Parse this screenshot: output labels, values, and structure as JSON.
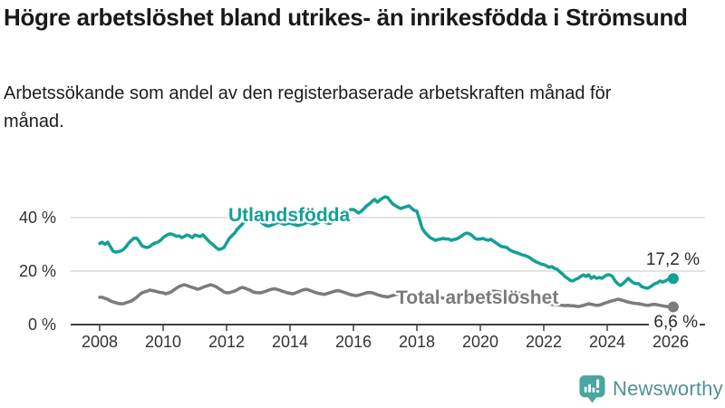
{
  "header": {
    "title": "Högre arbetslöshet bland utrikes- än inrikesfödda i Strömsund",
    "subtitle": "Arbetssökande som andel av den registerbaserade arbetskraften månad för månad."
  },
  "footer": {
    "brand_name": "Newsworthy"
  },
  "colors": {
    "foreign_line": "#13a096",
    "total_line": "#7b7b7b",
    "grid": "#dadada",
    "axis": "#404040",
    "brand_icon": "#4ba5a0",
    "brand_text": "#4f9390"
  },
  "chart_data": {
    "type": "line",
    "title": "Högre arbetslöshet bland utrikes- än inrikesfödda i Strömsund",
    "subtitle": "Arbetssökande som andel av den registerbaserade arbetskraften månad för månad.",
    "x_unit": "month",
    "x_start": "2008-01",
    "x_end": "2026-02",
    "x_ticks": [
      2008,
      2010,
      2012,
      2014,
      2016,
      2018,
      2020,
      2022,
      2024,
      2026
    ],
    "y_ticks": [
      {
        "label": "0 %",
        "value": 0
      },
      {
        "label": "20 %",
        "value": 20
      },
      {
        "label": "40 %",
        "value": 40
      }
    ],
    "ylim": [
      0,
      55
    ],
    "grid": "horizontal",
    "legend_position": "inline-labels",
    "series": [
      {
        "name": "Utlandsfödda",
        "color": "#13a096",
        "end_label": "17,2 %",
        "end_value": 17.2,
        "values": [
          30.3,
          30.8,
          30.0,
          30.8,
          29.2,
          27.5,
          27.1,
          27.3,
          27.5,
          28.1,
          29.2,
          30.5,
          31.5,
          32.3,
          32.3,
          31.0,
          29.5,
          29.0,
          28.8,
          29.2,
          30.0,
          30.5,
          30.8,
          31.5,
          32.5,
          33.2,
          33.8,
          33.9,
          33.6,
          33.0,
          33.2,
          32.5,
          32.9,
          33.5,
          33.2,
          32.5,
          33.5,
          33.2,
          32.9,
          33.6,
          32.5,
          31.5,
          30.5,
          29.8,
          28.8,
          28.1,
          28.3,
          28.8,
          30.5,
          32.2,
          33.2,
          34.2,
          35.6,
          36.6,
          37.6,
          39.0,
          39.3,
          38.3,
          39.0,
          39.3,
          39.0,
          38.3,
          37.6,
          37.0,
          36.8,
          37.2,
          37.6,
          38.0,
          38.3,
          37.8,
          37.5,
          37.8,
          38.0,
          37.6,
          37.3,
          37.0,
          37.3,
          37.6,
          38.0,
          38.3,
          37.9,
          37.6,
          37.9,
          38.2,
          38.5,
          38.3,
          38.0,
          37.8,
          38.3,
          39.0,
          39.5,
          40.2,
          41.0,
          41.8,
          42.4,
          43.0,
          43.0,
          42.4,
          41.7,
          42.4,
          43.4,
          44.4,
          45.1,
          46.0,
          46.8,
          45.8,
          46.5,
          47.3,
          47.8,
          47.5,
          46.1,
          45.0,
          44.4,
          43.8,
          43.4,
          43.8,
          44.1,
          44.4,
          43.5,
          42.7,
          42.4,
          39.3,
          36.0,
          34.5,
          33.5,
          32.5,
          32.0,
          31.5,
          31.8,
          32.0,
          32.2,
          32.0,
          32.0,
          31.5,
          31.8,
          32.0,
          32.5,
          33.2,
          33.9,
          34.2,
          33.9,
          33.2,
          32.2,
          31.9,
          32.0,
          32.2,
          31.8,
          31.5,
          31.9,
          31.2,
          30.5,
          29.8,
          29.2,
          29.0,
          28.8,
          28.0,
          27.5,
          27.1,
          26.8,
          26.4,
          26.0,
          25.8,
          25.4,
          24.8,
          24.1,
          23.5,
          23.1,
          22.6,
          22.4,
          22.0,
          21.4,
          21.7,
          21.0,
          20.7,
          19.8,
          19.0,
          18.0,
          17.3,
          16.5,
          16.3,
          16.9,
          17.3,
          18.0,
          18.6,
          18.0,
          18.6,
          17.3,
          18.0,
          17.3,
          17.6,
          17.3,
          18.0,
          18.6,
          18.6,
          18.0,
          16.3,
          15.3,
          14.6,
          15.3,
          16.3,
          17.3,
          16.3,
          15.6,
          15.3,
          15.3,
          14.2,
          13.9,
          13.6,
          13.9,
          14.6,
          15.3,
          15.6,
          16.3,
          15.9,
          16.3,
          16.9,
          16.9,
          17.2
        ]
      },
      {
        "name": "Total arbetslöshet",
        "color": "#7b7b7b",
        "end_label": "6,6 %",
        "end_value": 6.6,
        "values": [
          10.2,
          10.2,
          9.8,
          9.5,
          8.8,
          8.5,
          8.2,
          7.9,
          7.8,
          7.8,
          8.2,
          8.5,
          8.8,
          9.5,
          10.2,
          11.2,
          11.9,
          12.2,
          12.5,
          12.9,
          12.7,
          12.5,
          12.2,
          12.0,
          11.9,
          11.5,
          11.8,
          12.2,
          12.9,
          13.6,
          14.2,
          14.6,
          14.9,
          14.6,
          14.2,
          13.9,
          13.6,
          13.2,
          13.5,
          13.9,
          14.3,
          14.6,
          14.9,
          14.6,
          14.2,
          13.5,
          12.9,
          12.2,
          11.9,
          11.9,
          12.2,
          12.5,
          13.0,
          13.6,
          13.9,
          13.6,
          13.2,
          12.8,
          12.2,
          12.0,
          11.9,
          11.9,
          12.2,
          12.5,
          12.9,
          13.2,
          13.4,
          13.2,
          12.9,
          12.5,
          12.2,
          11.9,
          11.7,
          11.5,
          11.8,
          12.2,
          12.6,
          13.0,
          13.2,
          13.0,
          12.6,
          12.2,
          11.9,
          11.6,
          11.5,
          11.3,
          11.6,
          11.9,
          12.2,
          12.5,
          12.7,
          12.5,
          12.2,
          11.9,
          11.5,
          11.2,
          11.0,
          10.8,
          11.0,
          11.3,
          11.6,
          11.9,
          12.0,
          11.9,
          11.6,
          11.2,
          10.9,
          10.6,
          10.5,
          10.3,
          10.6,
          10.9,
          11.2,
          11.5,
          11.6,
          11.4,
          11.1,
          10.8,
          10.5,
          10.2,
          10.0,
          9.8,
          10.0,
          10.3,
          10.6,
          10.9,
          11.0,
          10.8,
          10.5,
          10.2,
          9.9,
          9.7,
          9.6,
          9.5,
          9.7,
          10.0,
          10.3,
          10.6,
          10.8,
          10.6,
          10.3,
          10.0,
          9.8,
          9.6,
          10.0,
          10.5,
          11.2,
          11.9,
          12.2,
          12.5,
          12.4,
          12.2,
          12.0,
          11.9,
          11.7,
          11.5,
          11.9,
          12.2,
          12.0,
          11.7,
          11.5,
          11.2,
          10.9,
          10.5,
          10.0,
          9.5,
          9.0,
          8.6,
          8.3,
          8.0,
          7.8,
          7.6,
          7.5,
          7.4,
          7.3,
          7.2,
          7.1,
          7.2,
          7.1,
          7.0,
          6.9,
          6.7,
          6.9,
          7.2,
          7.5,
          7.8,
          7.6,
          7.4,
          7.2,
          7.3,
          7.6,
          8.0,
          8.3,
          8.6,
          8.9,
          9.2,
          9.5,
          9.3,
          9.0,
          8.7,
          8.4,
          8.2,
          8.0,
          7.9,
          7.8,
          7.6,
          7.4,
          7.2,
          7.3,
          7.5,
          7.6,
          7.4,
          7.2,
          7.0,
          6.8,
          6.7,
          6.7,
          6.6
        ]
      }
    ]
  }
}
